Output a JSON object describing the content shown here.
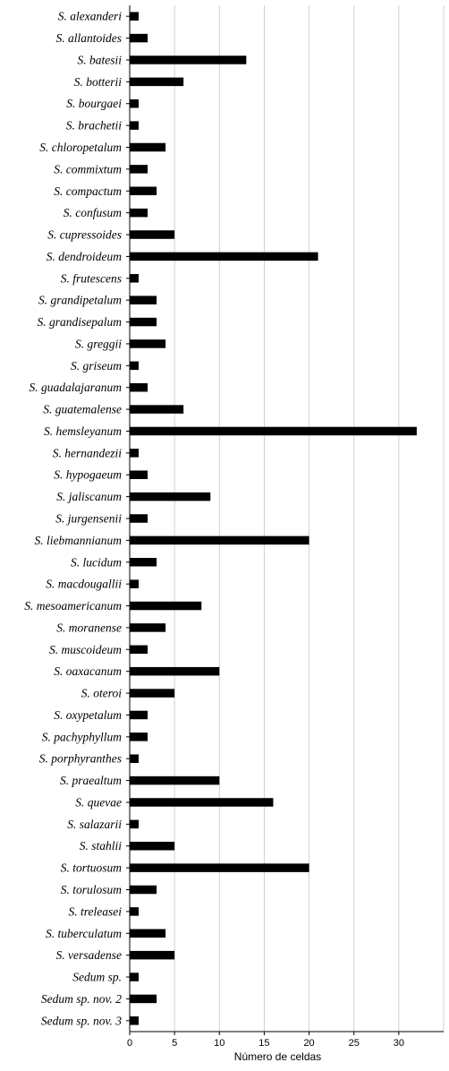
{
  "chart_data": {
    "type": "bar",
    "orientation": "horizontal",
    "title": "",
    "xlabel": "Número de celdas",
    "ylabel": "",
    "xlim": [
      0,
      35
    ],
    "xticks": [
      0,
      5,
      10,
      15,
      20,
      25,
      30
    ],
    "grid": "vertical",
    "legend": "none",
    "bar_color": "#000000",
    "grid_color": "#d0d0d0",
    "categories": [
      "S. alexanderi",
      "S. allantoides",
      "S. batesii",
      "S. botterii",
      "S. bourgaei",
      "S. brachetii",
      "S. chloropetalum",
      "S. commixtum",
      "S. compactum",
      "S. confusum",
      "S. cupressoides",
      "S. dendroideum",
      "S. frutescens",
      "S. grandipetalum",
      "S. grandisepalum",
      "S. greggii",
      "S. griseum",
      "S. guadalajaranum",
      "S. guatemalense",
      "S. hemsleyanum",
      "S. hernandezii",
      "S. hypogaeum",
      "S. jaliscanum",
      "S. jurgensenii",
      "S. liebmannianum",
      "S. lucidum",
      "S. macdougallii",
      "S. mesoamericanum",
      "S. moranense",
      "S. muscoideum",
      "S. oaxacanum",
      "S. oteroi",
      "S. oxypetalum",
      "S. pachyphyllum",
      "S. porphyranthes",
      "S. praealtum",
      "S. quevae",
      "S. salazarii",
      "S. stahlii",
      "S. tortuosum",
      "S. torulosum",
      "S. treleasei",
      "S. tuberculatum",
      "S. versadense",
      "Sedum sp.",
      "Sedum sp. nov. 2",
      "Sedum sp. nov. 3"
    ],
    "values": [
      1,
      2,
      13,
      6,
      1,
      1,
      4,
      2,
      3,
      2,
      5,
      21,
      1,
      3,
      3,
      4,
      1,
      2,
      6,
      32,
      1,
      2,
      9,
      2,
      20,
      3,
      1,
      8,
      4,
      2,
      10,
      5,
      2,
      2,
      1,
      10,
      16,
      1,
      5,
      20,
      3,
      1,
      4,
      5,
      1,
      3,
      1
    ]
  }
}
